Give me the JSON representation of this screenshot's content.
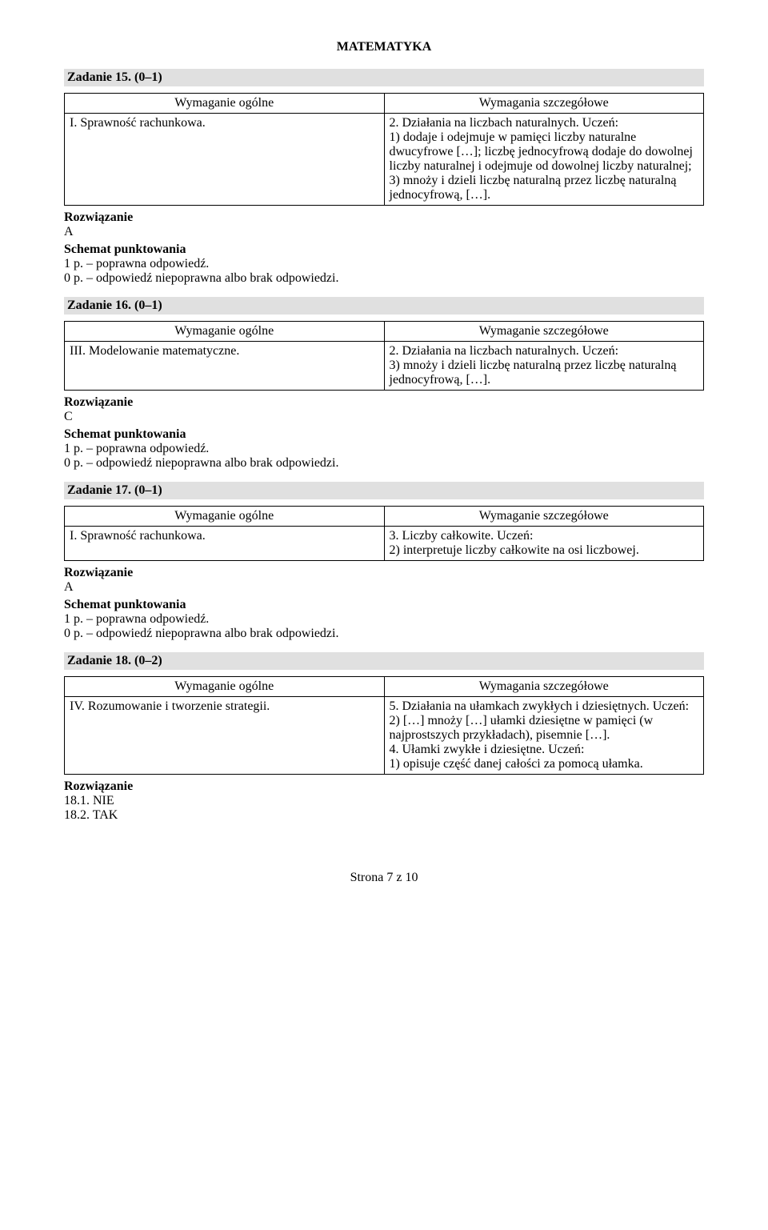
{
  "doc": {
    "title": "MATEMATYKA",
    "footer": "Strona 7 z 10",
    "labels": {
      "rozwiazanie": "Rozwiązanie",
      "schemat": "Schemat punktowania",
      "wymaganie_ogolne": "Wymaganie ogólne",
      "wymaganie_szczegolowe": "Wymaganie szczegółowe",
      "wymagania_szczegolowe": "Wymagania szczegółowe"
    }
  },
  "z15": {
    "title": "Zadanie 15. (0–1)",
    "left": "I. Sprawność rachunkowa.",
    "right": "2. Działania na liczbach naturalnych. Uczeń:\n1) dodaje i odejmuje w pamięci liczby naturalne dwucyfrowe […]; liczbę jednocyfrową dodaje do dowolnej liczby naturalnej i odejmuje od dowolnej liczby naturalnej;\n3) mnoży i dzieli liczbę naturalną przez liczbę naturalną jednocyfrową, […].",
    "answer": "A",
    "p1": "1 p. – poprawna odpowiedź.",
    "p0": "0 p. – odpowiedź niepoprawna albo brak odpowiedzi."
  },
  "z16": {
    "title": "Zadanie 16. (0–1)",
    "left": "III. Modelowanie matematyczne.",
    "right": "2. Działania na liczbach naturalnych. Uczeń:\n3) mnoży i dzieli liczbę naturalną przez liczbę naturalną jednocyfrową, […].",
    "answer": "C",
    "p1": "1 p. – poprawna odpowiedź.",
    "p0": "0 p. – odpowiedź niepoprawna albo brak odpowiedzi."
  },
  "z17": {
    "title": "Zadanie 17. (0–1)",
    "left": "I. Sprawność rachunkowa.",
    "right": "3. Liczby całkowite. Uczeń:\n2) interpretuje liczby całkowite na osi liczbowej.",
    "answer": "A",
    "p1": "1 p. – poprawna odpowiedź.",
    "p0": "0 p. – odpowiedź niepoprawna albo brak odpowiedzi."
  },
  "z18": {
    "title": "Zadanie 18. (0–2)",
    "left": "IV. Rozumowanie i tworzenie strategii.",
    "right": "5. Działania na ułamkach zwykłych i dziesiętnych. Uczeń:\n2) […] mnoży […] ułamki dziesiętne w pamięci (w najprostszych przykładach), pisemnie […].\n4. Ułamki zwykłe i dziesiętne. Uczeń:\n1) opisuje część danej całości za pomocą ułamka.",
    "answer1": "18.1. NIE",
    "answer2": "18.2. TAK"
  }
}
